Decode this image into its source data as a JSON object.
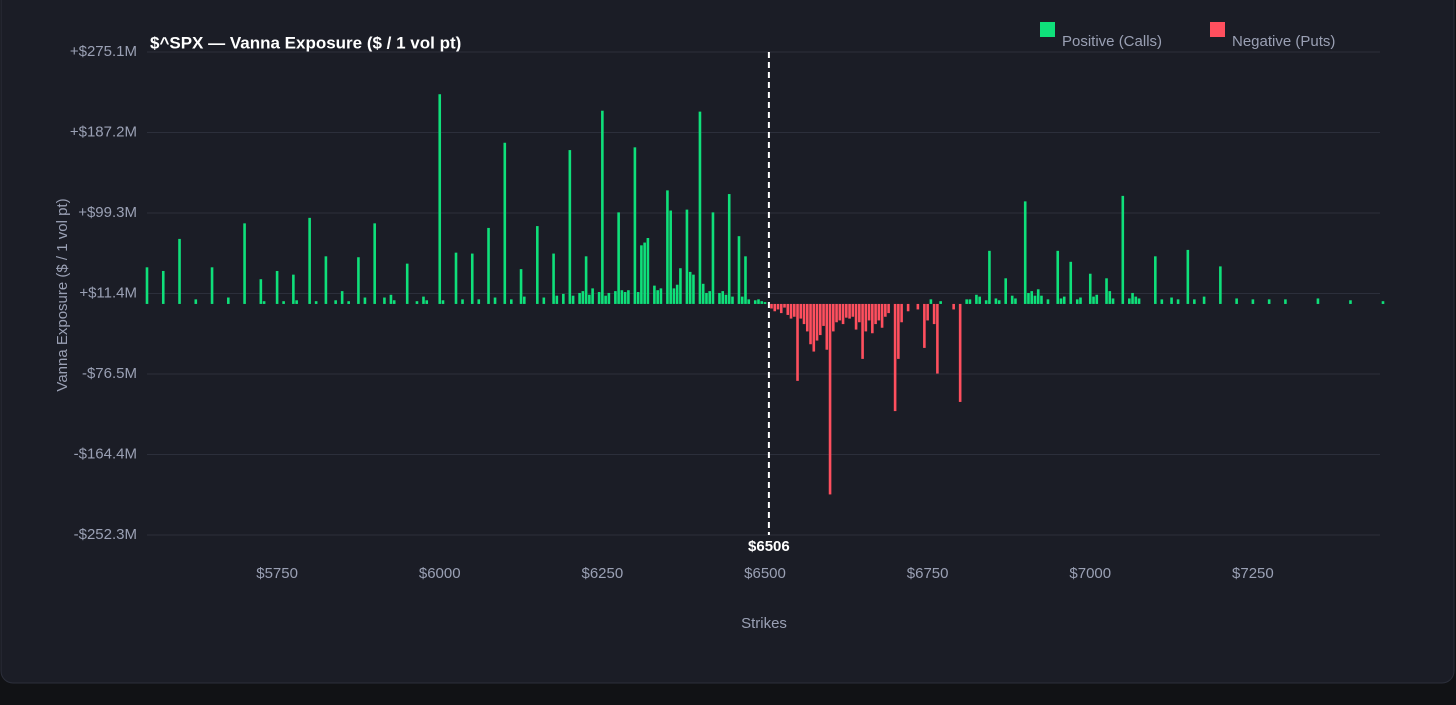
{
  "chart_data": {
    "type": "bar",
    "title": "$^SPX — Vanna Exposure ($ / 1 vol pt)",
    "xlabel": "Strikes",
    "ylabel": "Vanna Exposure ($ / 1 vol pt)",
    "legend": [
      {
        "name": "Positive (Calls)",
        "color": "#0fe07a"
      },
      {
        "name": "Negative (Puts)",
        "color": "#ff4f5e"
      }
    ],
    "legend_position": "top-right",
    "grid": true,
    "xlim": [
      5550,
      7450
    ],
    "ylim": [
      -252.3,
      275.1
    ],
    "xticks": [
      {
        "value": 5750,
        "label": "$5750"
      },
      {
        "value": 6000,
        "label": "$6000"
      },
      {
        "value": 6250,
        "label": "$6250"
      },
      {
        "value": 6500,
        "label": "$6500"
      },
      {
        "value": 6750,
        "label": "$6750"
      },
      {
        "value": 7000,
        "label": "$7000"
      },
      {
        "value": 7250,
        "label": "$7250"
      }
    ],
    "yticks": [
      {
        "value": 275.1,
        "label": "+$275.1M"
      },
      {
        "value": 187.2,
        "label": "+$187.2M"
      },
      {
        "value": 99.3,
        "label": "+$99.3M"
      },
      {
        "value": 11.4,
        "label": "+$11.4M"
      },
      {
        "value": -76.5,
        "label": "-$76.5M"
      },
      {
        "value": -164.4,
        "label": "-$164.4M"
      },
      {
        "value": -252.3,
        "label": "-$252.3M"
      }
    ],
    "spot": {
      "value": 6506,
      "label": "$6506"
    },
    "x": [
      5550,
      5575,
      5600,
      5625,
      5650,
      5675,
      5700,
      5725,
      5730,
      5750,
      5760,
      5775,
      5780,
      5800,
      5810,
      5825,
      5840,
      5850,
      5860,
      5875,
      5885,
      5900,
      5915,
      5925,
      5930,
      5950,
      5965,
      5975,
      5980,
      6000,
      6005,
      6025,
      6035,
      6050,
      6060,
      6075,
      6085,
      6100,
      6110,
      6125,
      6130,
      6150,
      6160,
      6175,
      6180,
      6190,
      6200,
      6205,
      6215,
      6220,
      6225,
      6230,
      6235,
      6245,
      6250,
      6255,
      6260,
      6270,
      6275,
      6280,
      6285,
      6290,
      6300,
      6305,
      6310,
      6315,
      6320,
      6330,
      6335,
      6340,
      6350,
      6355,
      6360,
      6365,
      6370,
      6380,
      6385,
      6390,
      6400,
      6405,
      6410,
      6415,
      6420,
      6430,
      6435,
      6440,
      6445,
      6450,
      6460,
      6465,
      6470,
      6475,
      6485,
      6490,
      6495,
      6500,
      6510,
      6515,
      6520,
      6525,
      6530,
      6535,
      6540,
      6545,
      6550,
      6555,
      6560,
      6565,
      6570,
      6575,
      6580,
      6585,
      6590,
      6595,
      6600,
      6605,
      6610,
      6615,
      6620,
      6625,
      6630,
      6635,
      6640,
      6645,
      6650,
      6655,
      6660,
      6665,
      6670,
      6675,
      6680,
      6685,
      6690,
      6700,
      6705,
      6710,
      6720,
      6735,
      6745,
      6750,
      6755,
      6760,
      6765,
      6770,
      6790,
      6800,
      6810,
      6815,
      6825,
      6830,
      6840,
      6845,
      6855,
      6860,
      6870,
      6880,
      6885,
      6900,
      6905,
      6910,
      6915,
      6920,
      6925,
      6935,
      6950,
      6955,
      6960,
      6970,
      6980,
      6985,
      7000,
      7005,
      7010,
      7025,
      7030,
      7035,
      7050,
      7060,
      7065,
      7070,
      7075,
      7100,
      7110,
      7125,
      7135,
      7150,
      7160,
      7175,
      7200,
      7225,
      7250,
      7275,
      7300,
      7350,
      7400,
      7450
    ],
    "values": [
      40,
      36,
      71,
      5,
      40,
      7,
      88,
      27,
      3,
      36,
      3,
      32,
      4,
      94,
      3,
      52,
      4,
      14,
      3,
      51,
      7,
      88,
      7,
      10,
      4,
      44,
      3,
      8,
      4,
      229,
      4,
      56,
      5,
      55,
      5,
      83,
      7,
      176,
      5,
      38,
      8,
      85,
      7,
      55,
      9,
      11,
      168,
      9,
      12,
      14,
      52,
      10,
      17,
      13,
      211,
      9,
      12,
      14,
      100,
      15,
      13,
      15,
      171,
      13,
      64,
      67,
      72,
      20,
      15,
      17,
      124,
      102,
      17,
      21,
      39,
      103,
      35,
      32,
      210,
      22,
      12,
      14,
      100,
      12,
      14,
      10,
      120,
      8,
      74,
      8,
      52,
      5,
      4,
      5,
      3,
      2,
      -5,
      -8,
      -6,
      -10,
      -4,
      -12,
      -16,
      -14,
      -84,
      -16,
      -22,
      -30,
      -44,
      -52,
      -40,
      -34,
      -24,
      -50,
      -208,
      -30,
      -20,
      -18,
      -22,
      -15,
      -16,
      -14,
      -28,
      -20,
      -60,
      -30,
      -18,
      -32,
      -22,
      -18,
      -26,
      -14,
      -10,
      -117,
      -60,
      -20,
      -8,
      -6,
      -48,
      -18,
      5,
      -22,
      -76,
      3,
      -6,
      -107,
      5,
      5,
      10,
      8,
      4,
      58,
      6,
      4,
      28,
      9,
      6,
      112,
      12,
      14,
      9,
      16,
      9,
      5,
      58,
      6,
      8,
      46,
      5,
      7,
      33,
      8,
      10,
      28,
      14,
      6,
      118,
      6,
      12,
      8,
      6,
      52,
      5,
      7,
      5,
      59,
      5,
      8,
      41,
      6,
      5,
      5,
      5,
      6,
      4,
      3
    ]
  }
}
